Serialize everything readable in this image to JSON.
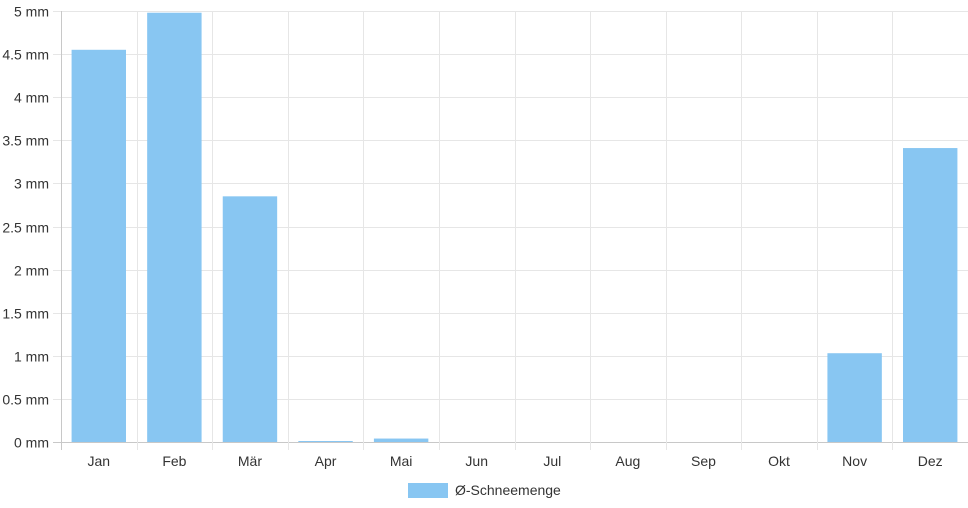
{
  "chart_data": {
    "type": "bar",
    "title": "",
    "xlabel": "",
    "ylabel": "",
    "categories": [
      "Jan",
      "Feb",
      "Mär",
      "Apr",
      "Mai",
      "Jun",
      "Jul",
      "Aug",
      "Sep",
      "Okt",
      "Nov",
      "Dez"
    ],
    "series": [
      {
        "name": "Ø-Schneemenge",
        "color": "#88c6f2",
        "values": [
          4.55,
          4.98,
          2.85,
          0.01,
          0.04,
          0,
          0,
          0,
          0,
          0,
          1.03,
          3.41
        ]
      }
    ],
    "ylim": [
      0,
      5
    ],
    "y_ticks": [
      "0 mm",
      "0.5 mm",
      "1 mm",
      "1.5 mm",
      "2 mm",
      "2.5 mm",
      "3 mm",
      "3.5 mm",
      "4 mm",
      "4.5 mm",
      "5 mm"
    ],
    "y_tick_values": [
      0,
      0.5,
      1,
      1.5,
      2,
      2.5,
      3,
      3.5,
      4,
      4.5,
      5
    ],
    "grid": true,
    "legend_position": "bottom-center"
  }
}
